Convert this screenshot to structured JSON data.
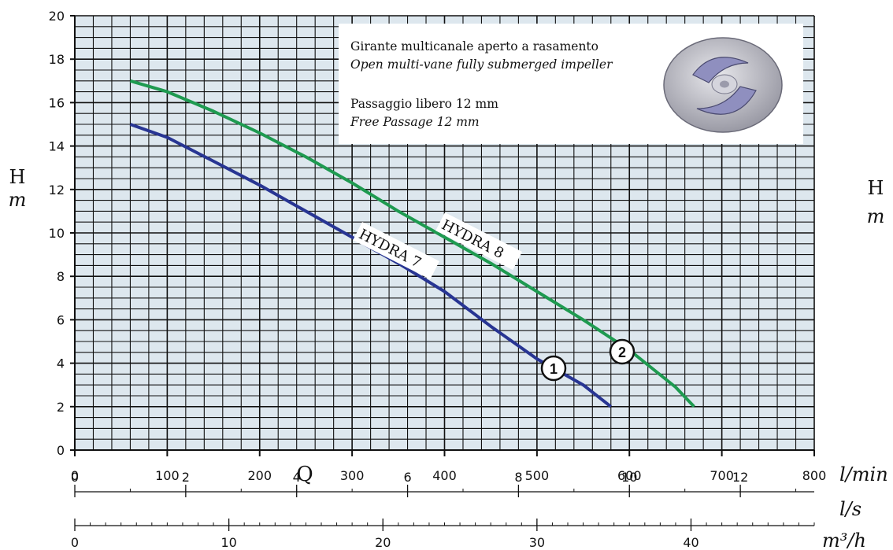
{
  "chart_data": {
    "type": "line",
    "xlabel": "Q",
    "ylabel": "H",
    "ylabel_unit": "m",
    "xlim": [
      0,
      800
    ],
    "ylim": [
      0,
      20
    ],
    "grid": true,
    "x_ticks": [
      "0",
      "100",
      "200",
      "300",
      "400",
      "500",
      "600",
      "700",
      "800"
    ],
    "x_unit": "l/min",
    "y_ticks": [
      "0",
      "2",
      "4",
      "6",
      "8",
      "10",
      "12",
      "14",
      "16",
      "18",
      "20"
    ],
    "secondary_axes": [
      {
        "unit": "l/s",
        "max": 13.333,
        "ticks": [
          "0",
          "2",
          "4",
          "6",
          "8",
          "10",
          "12"
        ],
        "values": [
          0,
          2,
          4,
          6,
          8,
          10,
          12
        ]
      },
      {
        "unit": "m³/h",
        "max": 48,
        "ticks": [
          "0",
          "10",
          "20",
          "30",
          "40"
        ],
        "values": [
          0,
          10,
          20,
          30,
          40
        ]
      }
    ],
    "right_label": {
      "top": "H",
      "bottom": "m"
    },
    "series": [
      {
        "name": "HYDRA 7",
        "marker": "1",
        "color": "#283593",
        "x": [
          60,
          100,
          150,
          200,
          250,
          300,
          350,
          400,
          450,
          500,
          550,
          580
        ],
        "y": [
          15.0,
          14.4,
          13.3,
          12.2,
          11.0,
          9.8,
          8.6,
          7.3,
          5.7,
          4.2,
          3.0,
          2.0
        ]
      },
      {
        "name": "HYDRA 8",
        "marker": "2",
        "color": "#1e9a50",
        "x": [
          60,
          100,
          150,
          200,
          250,
          300,
          350,
          400,
          450,
          500,
          550,
          600,
          650,
          670
        ],
        "y": [
          17.0,
          16.5,
          15.6,
          14.6,
          13.5,
          12.3,
          11.0,
          9.8,
          8.6,
          7.3,
          6.0,
          4.6,
          2.9,
          2.0
        ]
      }
    ],
    "info_box": {
      "line1": "Girante multicanale aperto a rasamento",
      "line2": "Open multi-vane fully submerged impeller",
      "line3": "Passaggio libero 12 mm",
      "line4": "Free Passage 12 mm",
      "image": "impeller-icon"
    }
  }
}
